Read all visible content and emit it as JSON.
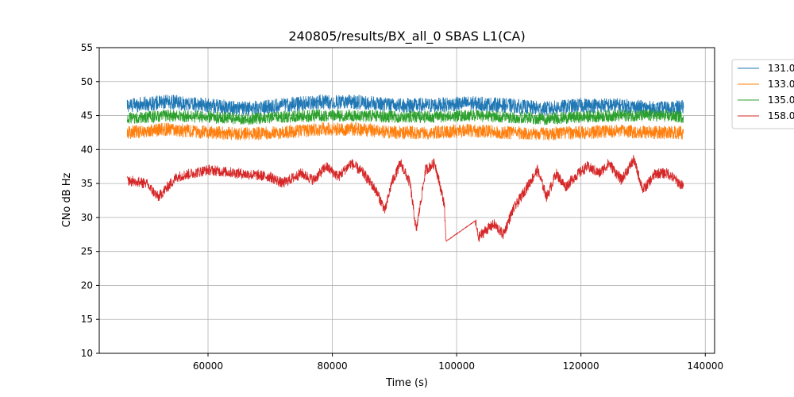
{
  "chart_data": {
    "type": "line",
    "title": "240805/results/BX_all_0 SBAS L1(CA)",
    "xlabel": "Time (s)",
    "ylabel": "CNo dB Hz",
    "xlim": [
      42500,
      141500
    ],
    "ylim": [
      10,
      55
    ],
    "xticks": [
      60000,
      80000,
      100000,
      120000,
      140000
    ],
    "yticks": [
      10,
      15,
      20,
      25,
      30,
      35,
      40,
      45,
      50,
      55
    ],
    "grid": true,
    "legend_position": "outside-right",
    "series": [
      {
        "name": "131.0",
        "color": "#1f77b4",
        "x": [
          47000,
          53500,
          60000,
          66000,
          72000,
          78000,
          84000,
          90000,
          96000,
          102000,
          108000,
          114000,
          120000,
          126000,
          132000,
          136500
        ],
        "y": [
          46.5,
          47,
          46.5,
          46,
          46.5,
          47,
          47,
          46.5,
          46.5,
          46.8,
          46.5,
          46,
          46.5,
          46.5,
          46,
          46.2
        ],
        "noise": 1.1
      },
      {
        "name": "133.0",
        "color": "#ff7f0e",
        "x": [
          47000,
          53500,
          60000,
          66000,
          72000,
          78000,
          84000,
          90000,
          96000,
          102000,
          108000,
          114000,
          120000,
          126000,
          132000,
          136500
        ],
        "y": [
          42.5,
          43,
          42.5,
          42.3,
          42.5,
          43,
          43,
          42.5,
          42.5,
          42.8,
          42.5,
          42.3,
          42.5,
          42.7,
          42.5,
          42.5
        ],
        "noise": 1.0
      },
      {
        "name": "135.0",
        "color": "#2ca02c",
        "x": [
          47000,
          53500,
          60000,
          66000,
          72000,
          78000,
          84000,
          90000,
          96000,
          102000,
          108000,
          114000,
          120000,
          126000,
          132000,
          136500
        ],
        "y": [
          44.5,
          45,
          44.8,
          44.5,
          44.8,
          45,
          45,
          44.8,
          44.8,
          45,
          44.8,
          44.5,
          44.8,
          45,
          45,
          44.8
        ],
        "noise": 0.9
      },
      {
        "name": "158.0",
        "color": "#d62728",
        "x": [
          47000,
          50000,
          52000,
          55000,
          60000,
          65000,
          70000,
          72000,
          75000,
          77000,
          79000,
          81000,
          83000,
          85000,
          87000,
          88500,
          89500,
          91000,
          92500,
          93500,
          95000,
          96500,
          98000,
          98300,
          103000,
          103500,
          104500,
          106000,
          107500,
          109000,
          111000,
          113000,
          114500,
          116000,
          117500,
          119000,
          121000,
          123000,
          124500,
          126500,
          128500,
          130000,
          132000,
          134000,
          136500
        ],
        "y": [
          35.5,
          35,
          33,
          36,
          37,
          36.5,
          36,
          35,
          36.5,
          35.5,
          37.5,
          36,
          38,
          36.5,
          34,
          31,
          35,
          38,
          35,
          28,
          37,
          38,
          32,
          26.5,
          29.5,
          27,
          28,
          29,
          27.5,
          31,
          34,
          37,
          33,
          36.5,
          34.5,
          36,
          37.5,
          36.5,
          38,
          35.5,
          38.5,
          34,
          36.5,
          36.5,
          34.5
        ],
        "noise": 0.8
      }
    ]
  }
}
